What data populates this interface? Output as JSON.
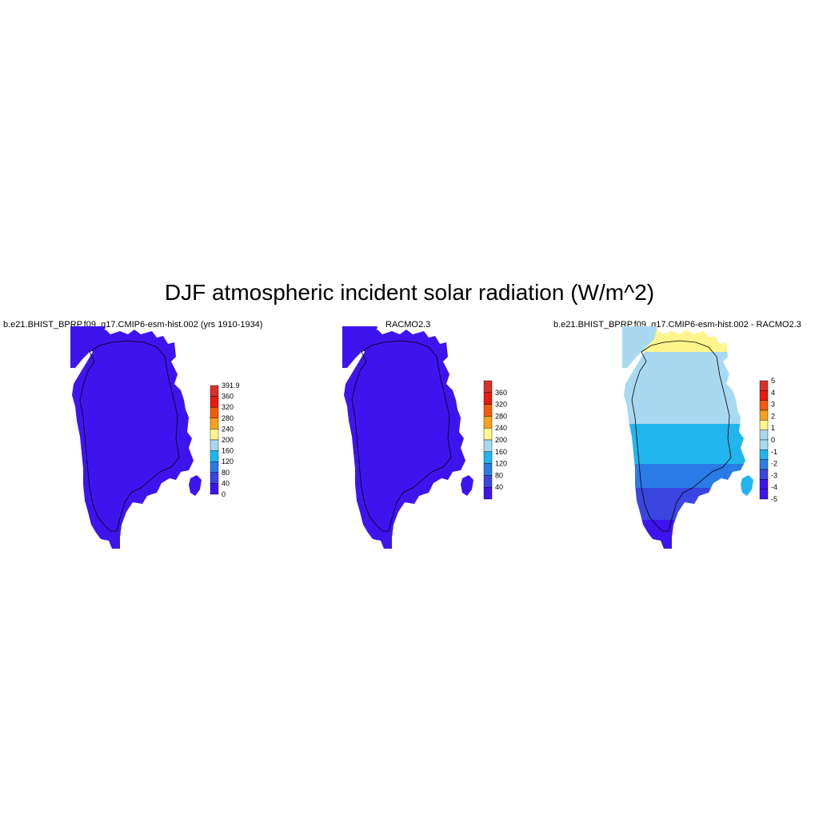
{
  "title": "DJF atmospheric incident solar radiation (W/m^2)",
  "panels": [
    {
      "title": "b.e21.BHIST_BPRP.f09_g17.CMIP6-esm-hist.002 (yrs 1910-1934)",
      "colorbar": {
        "labels": [
          "391.9",
          "360",
          "320",
          "280",
          "240",
          "200",
          "160",
          "120",
          "80",
          "40",
          "0"
        ],
        "colors": [
          "#d9302a",
          "#e81b0e",
          "#f65a0c",
          "#f9a11c",
          "#fff58c",
          "#a8d9f0",
          "#21b5ee",
          "#2b7be6",
          "#3b45e0",
          "#3e14ee"
        ]
      }
    },
    {
      "title": "RACMO2.3",
      "colorbar": {
        "labels": [
          "360",
          "320",
          "280",
          "240",
          "200",
          "160",
          "120",
          "80",
          "40"
        ],
        "colors": [
          "#d9302a",
          "#e81b0e",
          "#f65a0c",
          "#f9a11c",
          "#fff58c",
          "#a8d9f0",
          "#21b5ee",
          "#2b7be6",
          "#3b45e0",
          "#3e14ee"
        ]
      }
    },
    {
      "title": "b.e21.BHIST_BPRP.f09_g17.CMIP6-esm-hist.002 - RACMO2.3",
      "colorbar": {
        "labels": [
          "5",
          "4",
          "3",
          "2",
          "1",
          "0",
          "-1",
          "-2",
          "-3",
          "-4",
          "-5"
        ],
        "colors": [
          "#d9302a",
          "#e81b0e",
          "#f65a0c",
          "#f9a11c",
          "#fff58c",
          "#a8d9f0",
          "#a8d9f0",
          "#21b5ee",
          "#2b7be6",
          "#3b45e0",
          "#3e14ee",
          "#3e14ee"
        ]
      }
    }
  ],
  "colors": {
    "field_uniform": "#3e14ee",
    "diff_bands": [
      "#fff58c",
      "#a8d9f0",
      "#21b5ee",
      "#2b7be6",
      "#3b45e0",
      "#3e14ee"
    ]
  }
}
